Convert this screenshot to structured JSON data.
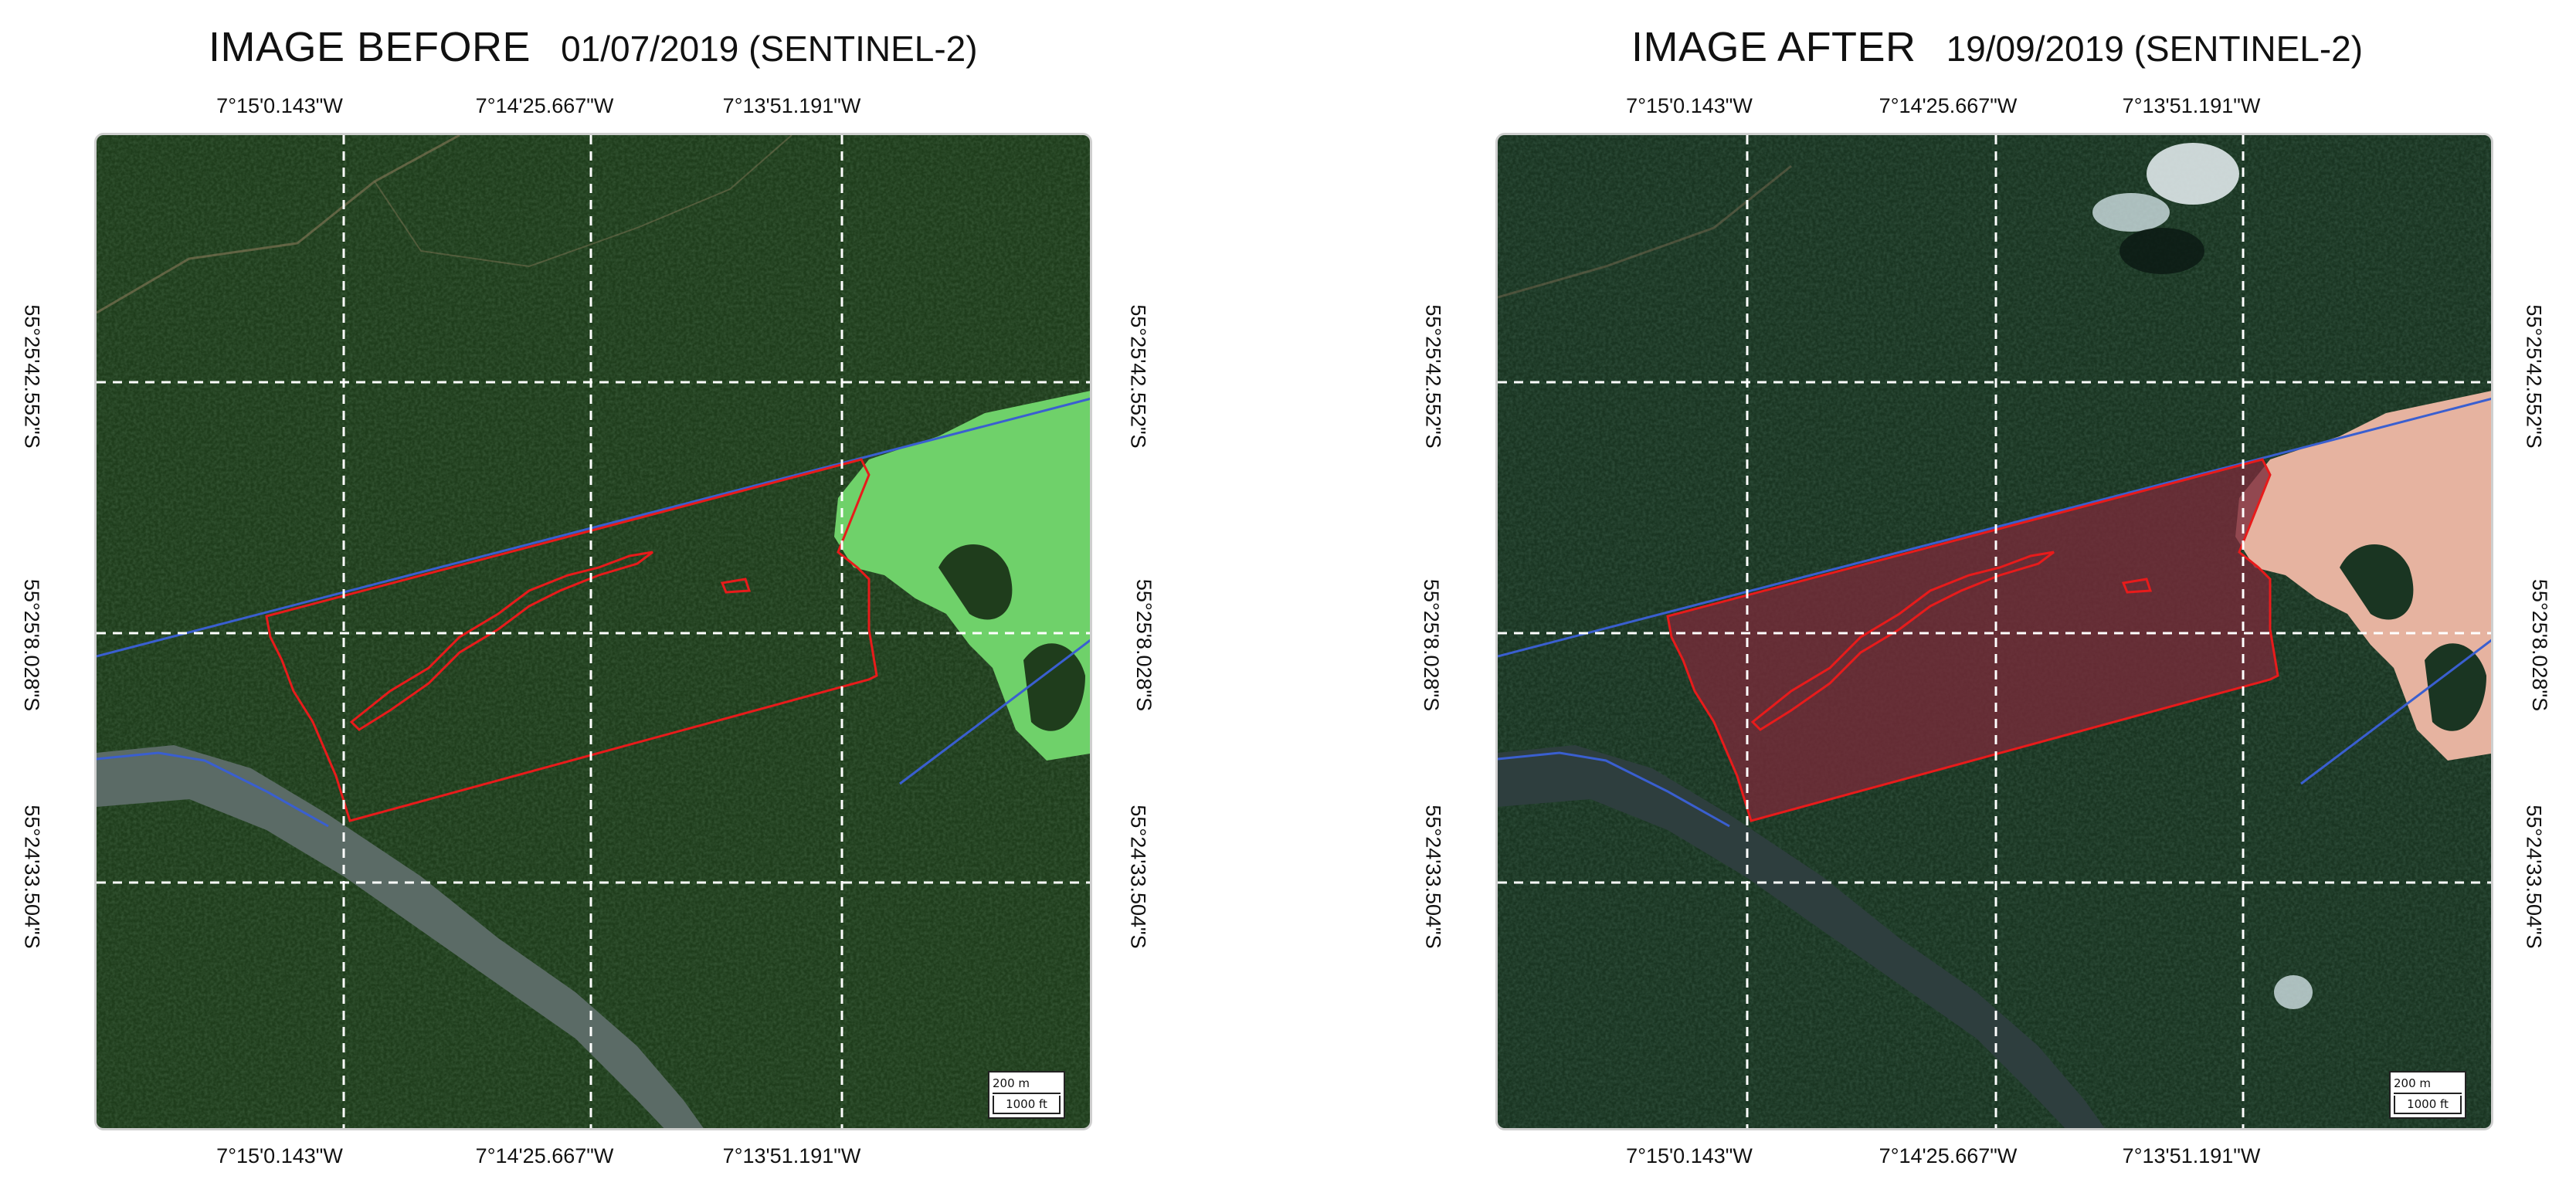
{
  "left": {
    "title": "IMAGE BEFORE",
    "date": "01/07/2019 (SENTINEL-2)",
    "lon_labels": [
      "7°15'0.143\"W",
      "7°14'25.667\"W",
      "7°13'51.191\"W"
    ],
    "lat_labels": [
      "55°25'42.552\"S",
      "55°25'8.028\"S",
      "55°24'33.504\"S"
    ],
    "scale_top": "200 m",
    "scale_bottom": "1000 ft"
  },
  "right": {
    "title": "IMAGE AFTER",
    "date": "19/09/2019 (SENTINEL-2)",
    "lon_labels": [
      "7°15'0.143\"W",
      "7°14'25.667\"W",
      "7°13'51.191\"W"
    ],
    "lat_labels": [
      "55°25'42.552\"S",
      "55°25'8.028\"S",
      "55°24'33.504\"S"
    ],
    "scale_top": "200 m",
    "scale_bottom": "1000 ft"
  },
  "colors": {
    "forest": "#1f3d1c",
    "clearing_before": "#6fd16a",
    "clearing_after": "#e6b3a0",
    "river": "#5b6b66",
    "boundary": "#e81b1b",
    "blue_line": "#3a5fd0",
    "grid": "#ffffff"
  }
}
